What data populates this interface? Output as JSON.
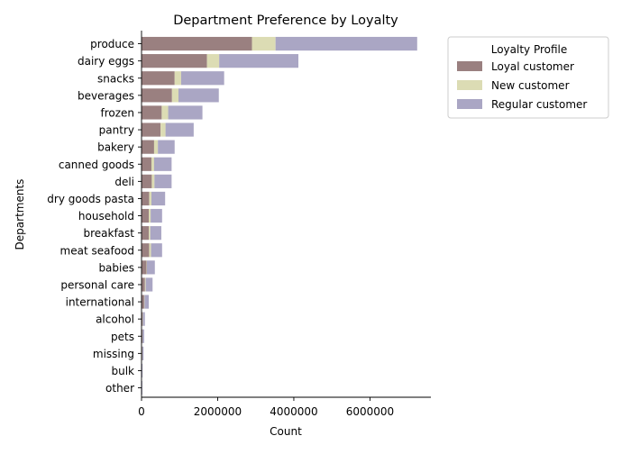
{
  "chart_data": {
    "type": "bar",
    "orientation": "horizontal",
    "stacked": true,
    "title": "Department Preference by Loyalty",
    "xlabel": "Count",
    "ylabel": "Departments",
    "xlim": [
      0,
      7600000
    ],
    "xticks": [
      0,
      2000000,
      4000000,
      6000000
    ],
    "xtick_labels": [
      "0",
      "2000000",
      "4000000",
      "6000000"
    ],
    "grid": false,
    "legend": {
      "title": "Loyalty Profile",
      "placement": "upper-right-outside"
    },
    "categories": [
      "produce",
      "dairy eggs",
      "snacks",
      "beverages",
      "frozen",
      "pantry",
      "bakery",
      "canned goods",
      "deli",
      "dry goods pasta",
      "household",
      "breakfast",
      "meat seafood",
      "babies",
      "personal care",
      "international",
      "alcohol",
      "pets",
      "missing",
      "bulk",
      "other"
    ],
    "series": [
      {
        "name": "Loyal customer",
        "color": "#9a8080",
        "values": [
          2900000,
          1720000,
          870000,
          800000,
          530000,
          500000,
          330000,
          260000,
          270000,
          200000,
          190000,
          190000,
          200000,
          130000,
          90000,
          70000,
          30000,
          25000,
          20000,
          10000,
          8000
        ]
      },
      {
        "name": "New customer",
        "color": "#dcdcb4",
        "values": [
          620000,
          320000,
          170000,
          170000,
          170000,
          130000,
          100000,
          70000,
          70000,
          60000,
          50000,
          40000,
          50000,
          10000,
          20000,
          10000,
          8000,
          5000,
          3000,
          2000,
          2000
        ]
      },
      {
        "name": "Regular customer",
        "color": "#aaa6c4",
        "values": [
          3720000,
          2080000,
          1130000,
          1060000,
          900000,
          740000,
          440000,
          460000,
          450000,
          360000,
          300000,
          290000,
          290000,
          210000,
          180000,
          110000,
          50000,
          40000,
          30000,
          15000,
          12000
        ]
      }
    ]
  }
}
